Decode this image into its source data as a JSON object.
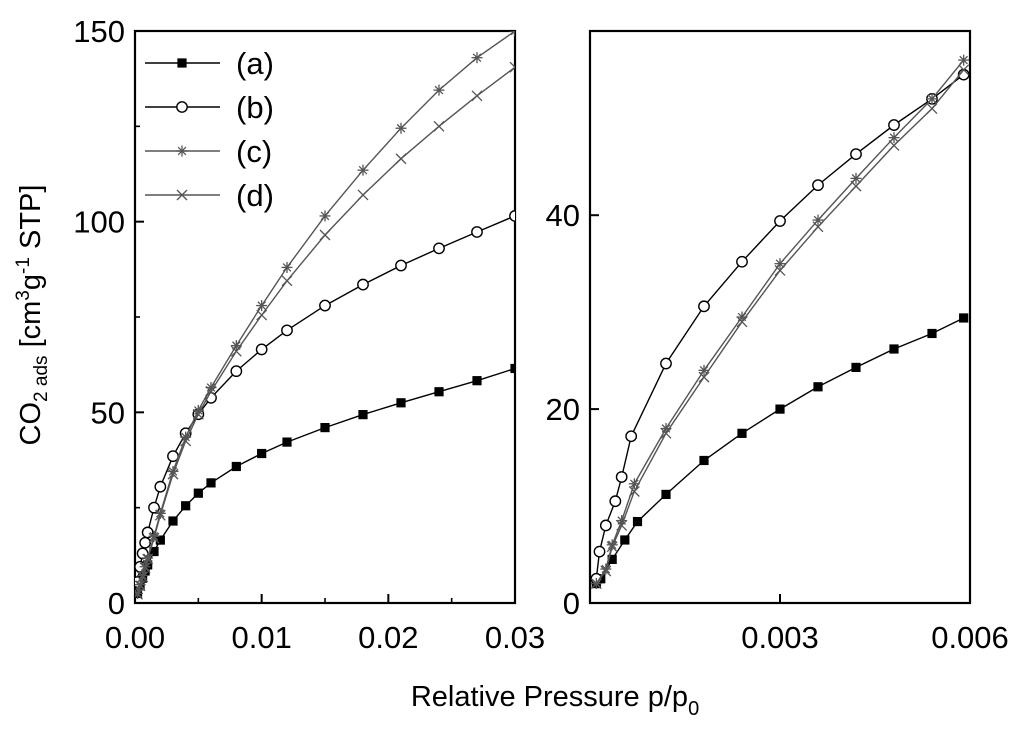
{
  "chart_data": [
    {
      "type": "line",
      "panel": "left",
      "xlim": [
        0,
        0.03
      ],
      "ylim": [
        0,
        150
      ],
      "xticks": [
        0.0,
        0.01,
        0.02,
        0.03
      ],
      "xtick_labels": [
        "0.00",
        "0.01",
        "0.02",
        "0.03"
      ],
      "yticks": [
        0,
        50,
        100,
        150
      ],
      "ytick_labels": [
        "0",
        "50",
        "100",
        "150"
      ],
      "legend": {
        "placement": "top-left",
        "entries": [
          "(a)",
          "(b)",
          "(c)",
          "(d)"
        ]
      },
      "series": [
        {
          "name": "(a)",
          "marker": "filled-square",
          "color": "#000000",
          "x": [
            0.0002,
            0.0004,
            0.0006,
            0.0008,
            0.001,
            0.0015,
            0.002,
            0.003,
            0.004,
            0.005,
            0.006,
            0.008,
            0.01,
            0.012,
            0.015,
            0.018,
            0.021,
            0.024,
            0.027,
            0.03
          ],
          "y": [
            2.5,
            4.5,
            6.5,
            8.4,
            10,
            13.5,
            16.5,
            21.5,
            25.5,
            28.8,
            31.5,
            35.8,
            39.2,
            42.2,
            46,
            49.4,
            52.5,
            55.4,
            58.3,
            61.5
          ]
        },
        {
          "name": "(b)",
          "marker": "open-circle",
          "color": "#000000",
          "x": [
            0.0002,
            0.0004,
            0.0006,
            0.0008,
            0.001,
            0.0015,
            0.002,
            0.003,
            0.004,
            0.005,
            0.006,
            0.008,
            0.01,
            0.012,
            0.015,
            0.018,
            0.021,
            0.024,
            0.027,
            0.03
          ],
          "y": [
            5.5,
            9.5,
            13,
            15.8,
            18.5,
            25,
            30.5,
            38.5,
            44.5,
            49.5,
            53.8,
            60.8,
            66.5,
            71.5,
            78,
            83.5,
            88.5,
            93,
            97.3,
            101.5
          ]
        },
        {
          "name": "(c)",
          "marker": "asterisk",
          "color": "#555555",
          "x": [
            0.0002,
            0.0004,
            0.0006,
            0.0008,
            0.001,
            0.0015,
            0.002,
            0.003,
            0.004,
            0.005,
            0.006,
            0.008,
            0.01,
            0.012,
            0.015,
            0.018,
            0.021,
            0.024,
            0.027,
            0.03
          ],
          "y": [
            2.5,
            4.8,
            7.2,
            9.5,
            11.8,
            17.5,
            23.5,
            34.5,
            43.5,
            50.5,
            56.5,
            67.5,
            78,
            88,
            101.5,
            113.5,
            124.5,
            134.5,
            143,
            150
          ]
        },
        {
          "name": "(d)",
          "marker": "cross",
          "color": "#555555",
          "x": [
            0.0002,
            0.0004,
            0.0006,
            0.0008,
            0.001,
            0.0015,
            0.002,
            0.003,
            0.004,
            0.005,
            0.006,
            0.008,
            0.01,
            0.012,
            0.015,
            0.018,
            0.021,
            0.024,
            0.027,
            0.03
          ],
          "y": [
            2.3,
            4.5,
            6.8,
            9.2,
            11.5,
            17,
            23,
            33.8,
            42.5,
            49.5,
            55.5,
            66,
            75.5,
            84.5,
            96.5,
            107,
            116.5,
            125,
            133,
            140.5
          ]
        }
      ]
    },
    {
      "type": "line",
      "panel": "right",
      "xlim": [
        0,
        0.006
      ],
      "ylim": [
        0,
        59
      ],
      "xticks": [
        0.003,
        0.006
      ],
      "xtick_labels": [
        "0.003",
        "0.006"
      ],
      "yticks": [
        0,
        20,
        40
      ],
      "ytick_labels": [
        "0",
        "20",
        "40"
      ],
      "series": [
        {
          "name": "(a)",
          "marker": "filled-square",
          "color": "#000000",
          "x": [
            0.0001,
            0.00017,
            0.00035,
            0.00055,
            0.00075,
            0.0012,
            0.0018,
            0.0024,
            0.003,
            0.0036,
            0.0042,
            0.0048,
            0.0054,
            0.0059
          ],
          "y": [
            2.0,
            2.5,
            4.5,
            6.5,
            8.4,
            11.2,
            14.7,
            17.5,
            20.0,
            22.3,
            24.3,
            26.2,
            27.8,
            29.4
          ]
        },
        {
          "name": "(b)",
          "marker": "open-circle",
          "color": "#000000",
          "x": [
            0.0001,
            0.00015,
            0.00025,
            0.0004,
            0.0005,
            0.00065,
            0.0012,
            0.0018,
            0.0024,
            0.003,
            0.0036,
            0.0042,
            0.0048,
            0.0054,
            0.0059
          ],
          "y": [
            2.5,
            5.3,
            8.0,
            10.5,
            13.0,
            17.2,
            24.7,
            30.6,
            35.2,
            39.4,
            43.1,
            46.3,
            49.3,
            52.0,
            54.5
          ]
        },
        {
          "name": "(c)",
          "marker": "asterisk",
          "color": "#555555",
          "x": [
            0.0001,
            0.00025,
            0.00035,
            0.0005,
            0.0007,
            0.0012,
            0.0018,
            0.0024,
            0.003,
            0.0036,
            0.0042,
            0.0048,
            0.0054,
            0.0059
          ],
          "y": [
            2.0,
            3.5,
            6.0,
            8.5,
            12.3,
            18.0,
            24.0,
            29.5,
            35.0,
            39.5,
            43.8,
            48.0,
            52.0,
            56.0
          ]
        },
        {
          "name": "(d)",
          "marker": "cross",
          "color": "#555555",
          "x": [
            0.0001,
            0.00025,
            0.00035,
            0.0005,
            0.0007,
            0.0012,
            0.0018,
            0.0024,
            0.003,
            0.0036,
            0.0042,
            0.0048,
            0.0054,
            0.0059
          ],
          "y": [
            2.0,
            3.3,
            5.8,
            8.0,
            11.5,
            17.5,
            23.3,
            29.0,
            34.3,
            38.8,
            43.0,
            47.2,
            51.0,
            55.0
          ]
        }
      ]
    }
  ],
  "xlabel": {
    "main": "Relative Pressure p/p",
    "sub": "0"
  },
  "ylabel": {
    "co": "CO",
    "co_sub": "2 ads",
    "bracket_open": " [cm",
    "sup3": "3",
    "g": "g",
    "sup_minus1": "-1",
    "stp": " STP]"
  }
}
